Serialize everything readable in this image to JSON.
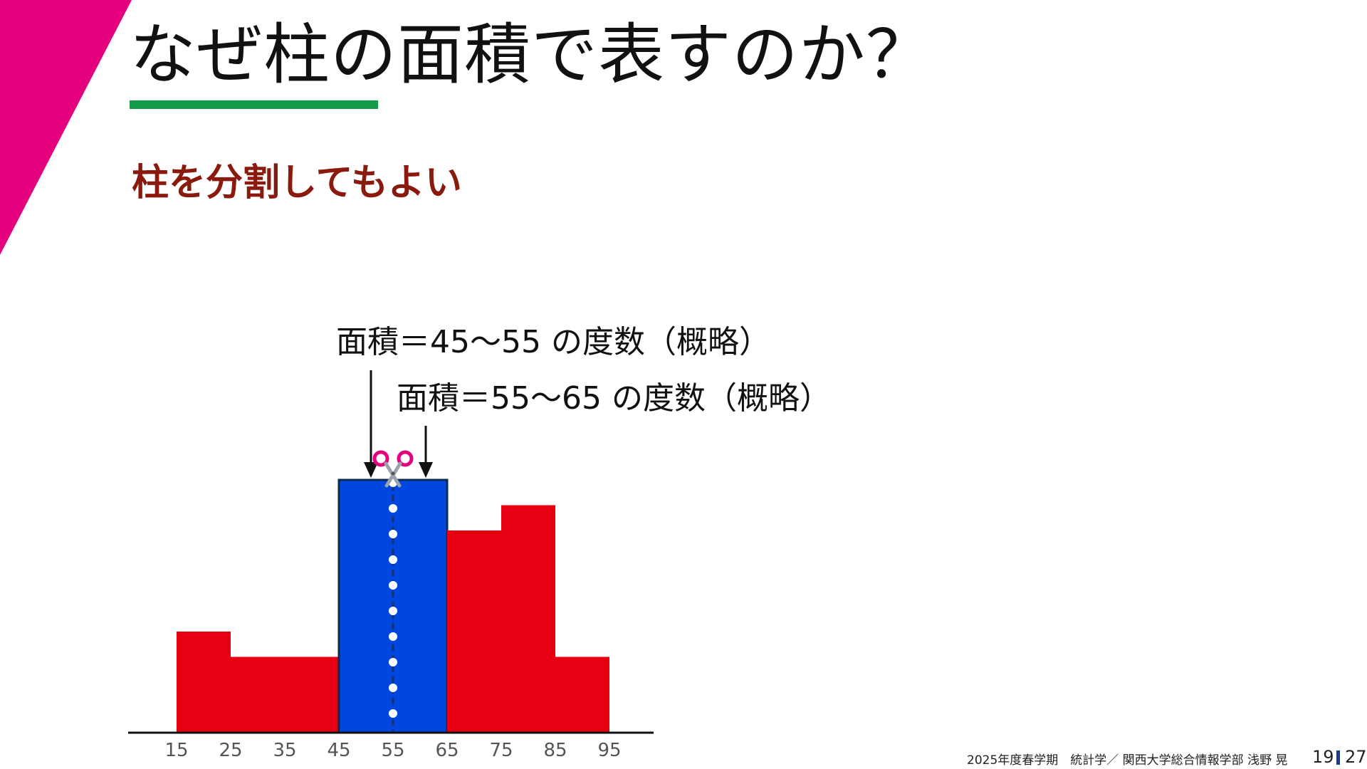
{
  "slide": {
    "title": "なぜ柱の面積で表すのか？",
    "subtitle": "柱を分割してもよい",
    "annotations": [
      "面積＝45～55 の度数（概略）",
      "面積＝55～65 の度数（概略）"
    ],
    "footer": "2025年度春学期　統計学／ 関西大学総合情報学部 浅野 晃",
    "page_current": "19",
    "page_total": "27"
  },
  "colors": {
    "accent_magenta": "#e5007e",
    "underline_green": "#149a4b",
    "subtitle_red": "#8b1a0e",
    "bar_red": "#e60012",
    "bar_blue": "#0047e0",
    "blue_outline": "#0c2a4d"
  },
  "icons": {
    "scissors": "scissors-icon",
    "arrow": "arrow-down-icon"
  },
  "chart_data": {
    "type": "bar",
    "x_ticks": [
      15,
      25,
      35,
      45,
      55,
      65,
      75,
      85,
      95
    ],
    "bins": [
      {
        "from": 15,
        "to": 25,
        "height": 4,
        "highlight": false
      },
      {
        "from": 25,
        "to": 35,
        "height": 3,
        "highlight": false
      },
      {
        "from": 35,
        "to": 45,
        "height": 3,
        "highlight": false
      },
      {
        "from": 45,
        "to": 65,
        "height": 10,
        "highlight": true
      },
      {
        "from": 65,
        "to": 75,
        "height": 8,
        "highlight": false
      },
      {
        "from": 75,
        "to": 85,
        "height": 9,
        "highlight": false
      },
      {
        "from": 85,
        "to": 95,
        "height": 3,
        "highlight": false
      }
    ],
    "cut_line_x": 55,
    "arrows_x": [
      45,
      65
    ],
    "xlim": [
      10,
      105
    ],
    "ylim": [
      0,
      11
    ],
    "title": "",
    "xlabel": "",
    "ylabel": "",
    "grid": false,
    "legend": "none"
  }
}
